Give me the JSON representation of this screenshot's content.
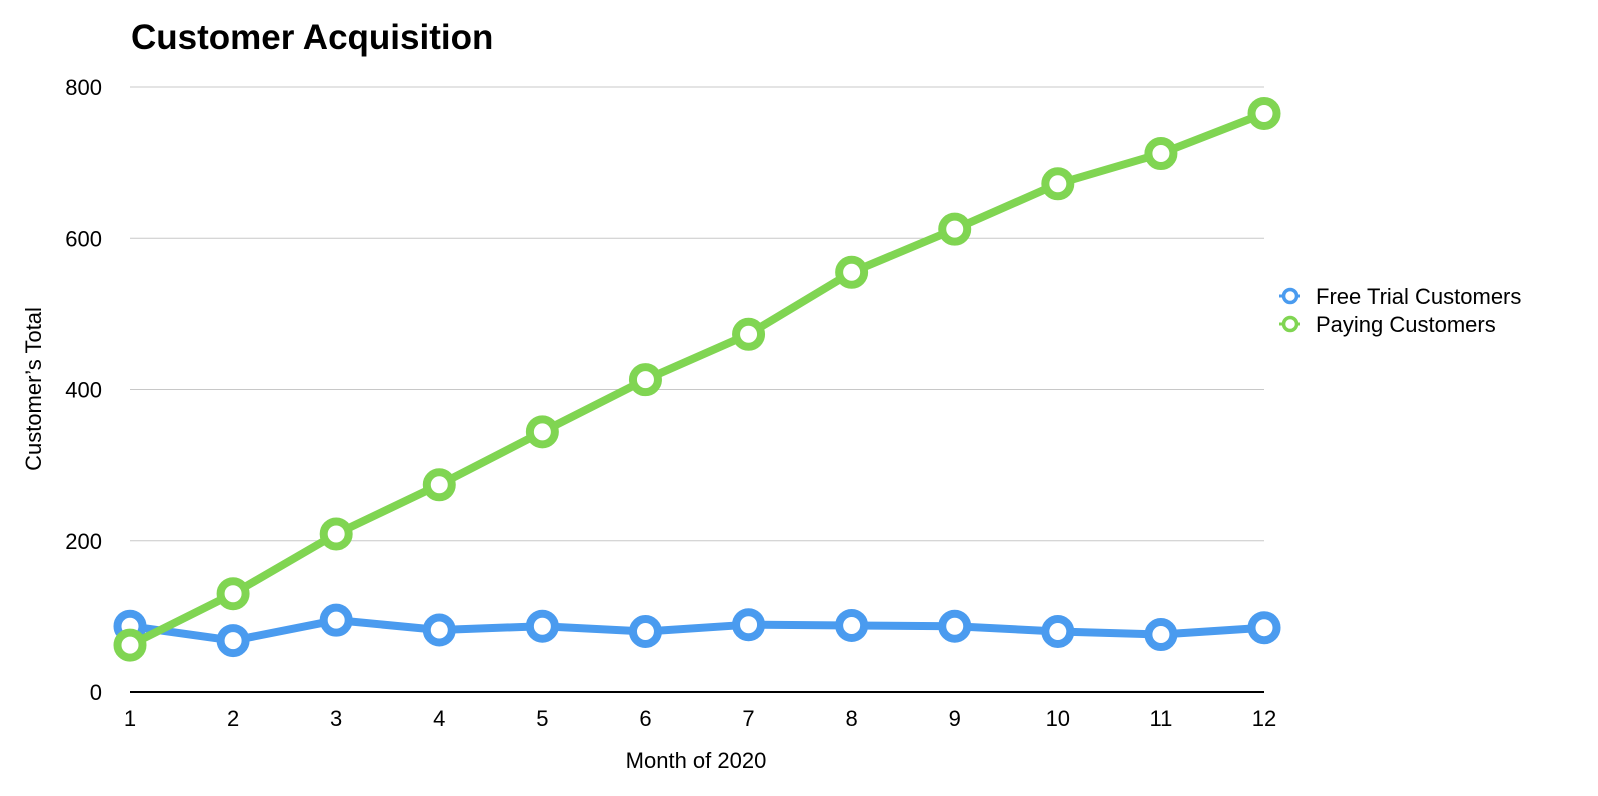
{
  "chart_data": {
    "type": "line",
    "title": "Customer Acquisition",
    "xlabel": "Month of 2020",
    "ylabel": "Customer’s Total",
    "categories": [
      "1",
      "2",
      "3",
      "4",
      "5",
      "6",
      "7",
      "8",
      "9",
      "10",
      "11",
      "12"
    ],
    "ylim": [
      0,
      800
    ],
    "yticks": [
      0,
      200,
      400,
      600,
      800
    ],
    "grid": true,
    "legend_position": "right",
    "series": [
      {
        "name": "Free Trial Customers",
        "color": "#4a9bef",
        "values": [
          87,
          68,
          95,
          82,
          87,
          80,
          89,
          88,
          87,
          80,
          76,
          85
        ]
      },
      {
        "name": "Paying Customers",
        "color": "#80d552",
        "values": [
          62,
          130,
          209,
          274,
          344,
          413,
          473,
          555,
          612,
          672,
          712,
          765
        ]
      }
    ]
  }
}
